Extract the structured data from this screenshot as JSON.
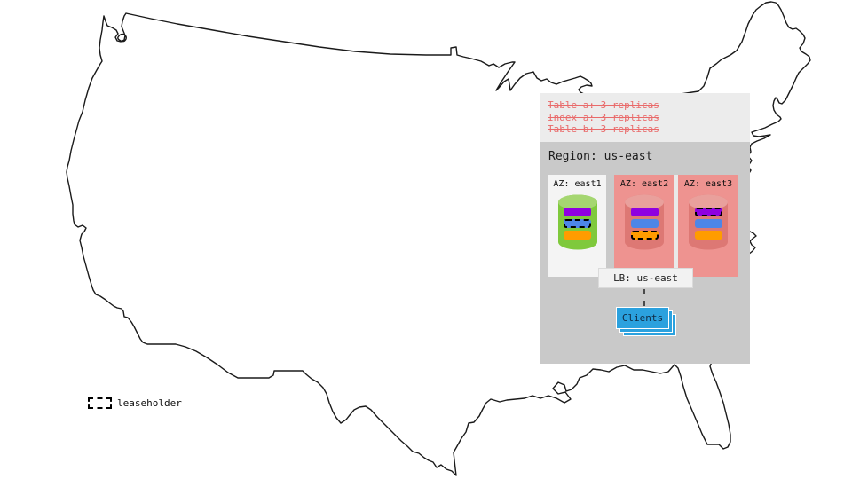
{
  "notes": {
    "items": [
      {
        "label": "Table a: 3 replicas"
      },
      {
        "label": "Index a: 3 replicas"
      },
      {
        "label": "Table b: 3 replicas"
      }
    ]
  },
  "region": {
    "title": "Region: us-east",
    "azs": [
      {
        "label": "AZ: east1",
        "theme": "light",
        "separator_before": "none",
        "replicas": [
          {
            "color": "purple",
            "leaseholder": false
          },
          {
            "color": "blue",
            "leaseholder": true
          },
          {
            "color": "orange",
            "leaseholder": false
          }
        ]
      },
      {
        "label": "AZ: east2",
        "theme": "pink",
        "separator_before": "dark",
        "replicas": [
          {
            "color": "purple",
            "leaseholder": false
          },
          {
            "color": "blue",
            "leaseholder": false
          },
          {
            "color": "orange",
            "leaseholder": true
          }
        ]
      },
      {
        "label": "AZ: east3",
        "theme": "pink",
        "separator_before": "light",
        "replicas": [
          {
            "color": "purple",
            "leaseholder": true
          },
          {
            "color": "blue",
            "leaseholder": false
          },
          {
            "color": "orange",
            "leaseholder": false
          }
        ]
      }
    ],
    "lb": {
      "label": "LB: us-east"
    },
    "clients": {
      "label": "Clients"
    }
  },
  "legend": {
    "label": "leaseholder"
  },
  "colors": {
    "notes_text": "#e96a6a",
    "panel_top_bg": "#ececec",
    "region_bg": "#c9c9c9",
    "az_light_bg": "#f4f4f4",
    "az_pink_bg": "#ee9390",
    "cyl_green_body": "#7fc93c",
    "cyl_green_top": "#a5d671",
    "cyl_red_body": "#dd7874",
    "cyl_red_top": "#e9a09c",
    "replica_purple": "#8f00e0",
    "replica_blue": "#4d86e8",
    "replica_orange": "#ff9c00",
    "clients_blue": "#2ba1de",
    "map_stroke": "#1a1a1a"
  }
}
